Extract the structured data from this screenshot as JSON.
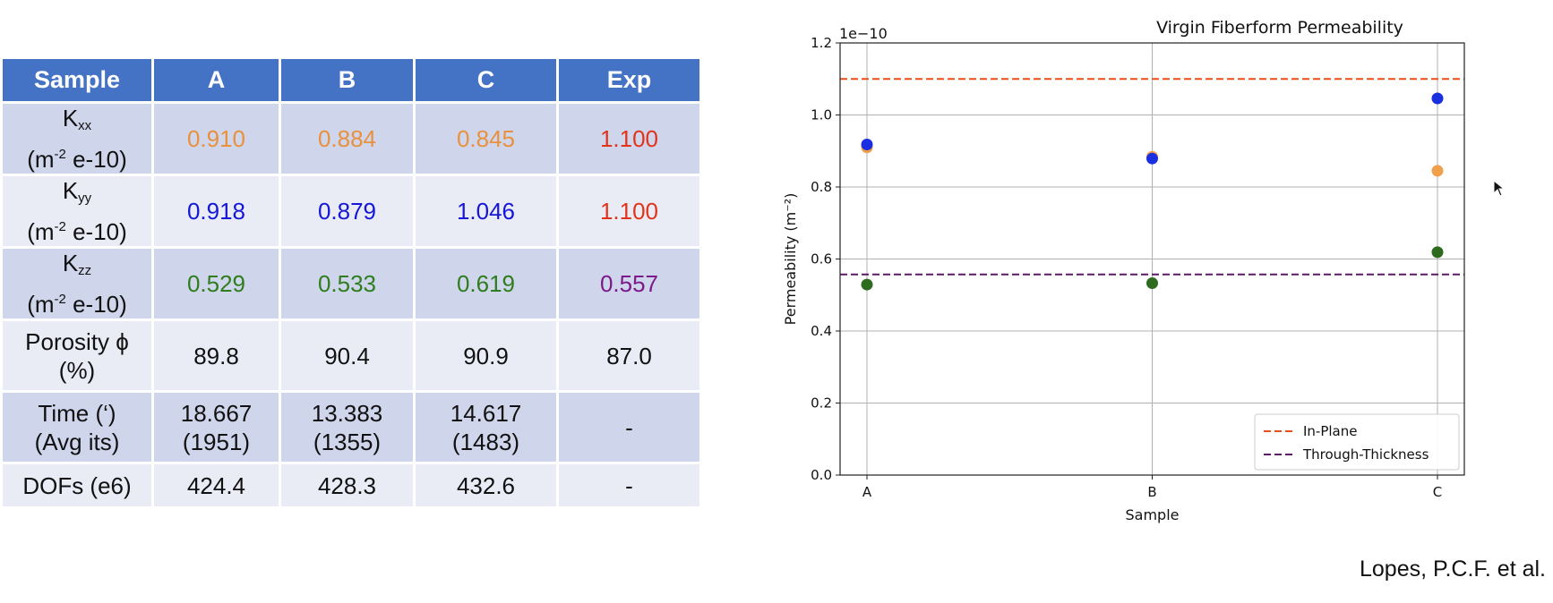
{
  "table": {
    "headers": [
      "Sample",
      "A",
      "B",
      "C",
      "Exp"
    ],
    "rows": {
      "kxx": {
        "symbol": "K",
        "subscript": "xx",
        "unit_prefix": "(m",
        "unit_exp": "-2",
        "unit_suffix": " e-10)",
        "values": [
          "0.910",
          "0.884",
          "0.845",
          "1.100"
        ]
      },
      "kyy": {
        "symbol": "K",
        "subscript": "yy",
        "unit_prefix": "(m",
        "unit_exp": "-2",
        "unit_suffix": " e-10)",
        "values": [
          "0.918",
          "0.879",
          "1.046",
          "1.100"
        ]
      },
      "kzz": {
        "symbol": "K",
        "subscript": "zz",
        "unit_prefix": "(m",
        "unit_exp": "-2",
        "unit_suffix": " e-10)",
        "values": [
          "0.529",
          "0.533",
          "0.619",
          "0.557"
        ]
      },
      "porosity": {
        "label_line1": "Porosity ϕ",
        "label_line2": "(%)",
        "values": [
          "89.8",
          "90.4",
          "90.9",
          "87.0"
        ]
      },
      "time": {
        "label_line1": "Time (‘)",
        "label_line2": "(Avg its)",
        "values": [
          {
            "line1": "18.667",
            "line2": "(1951)"
          },
          {
            "line1": "13.383",
            "line2": "(1355)"
          },
          {
            "line1": "14.617",
            "line2": "(1483)"
          },
          {
            "line1": "-",
            "line2": ""
          }
        ]
      },
      "dofs": {
        "label": "DOFs (e6)",
        "values": [
          "424.4",
          "428.3",
          "432.6",
          "-"
        ]
      }
    },
    "colors": {
      "header_bg": "#4472c4",
      "row_dark": "#cfd5ea",
      "row_light": "#e9ebf5",
      "kxx": "#e8913e",
      "kyy": "#1616d8",
      "kzz": "#2e7d1e",
      "exp_in_plane": "#e2331b",
      "exp_through": "#7b1a8a"
    }
  },
  "chart_data": {
    "type": "scatter",
    "title": "Virgin Fiberform Permeability",
    "xlabel": "Sample",
    "ylabel": "Permeability (m⁻²)",
    "scale_label": "1e−10",
    "categories": [
      "A",
      "B",
      "C"
    ],
    "ylim": [
      0.0,
      1.2
    ],
    "yticks": [
      "0.0",
      "0.2",
      "0.4",
      "0.6",
      "0.8",
      "1.0",
      "1.2"
    ],
    "grid": true,
    "legend_position": "lower-right",
    "series": [
      {
        "values": [
          0.91,
          0.884,
          0.845
        ],
        "color": "#f0a04b"
      },
      {
        "values": [
          0.918,
          0.879,
          1.046
        ],
        "color": "#1a2fe0"
      },
      {
        "values": [
          0.529,
          0.533,
          0.619
        ],
        "color": "#2e6b1f"
      }
    ],
    "reference_lines": [
      {
        "name": "In-Plane",
        "value": 1.1,
        "color": "#e8501a",
        "style": "dashed"
      },
      {
        "name": "Through-Thickness",
        "value": 0.557,
        "color": "#5c1a66",
        "style": "dashed"
      }
    ]
  },
  "credit": "Lopes, P.C.F. et al."
}
